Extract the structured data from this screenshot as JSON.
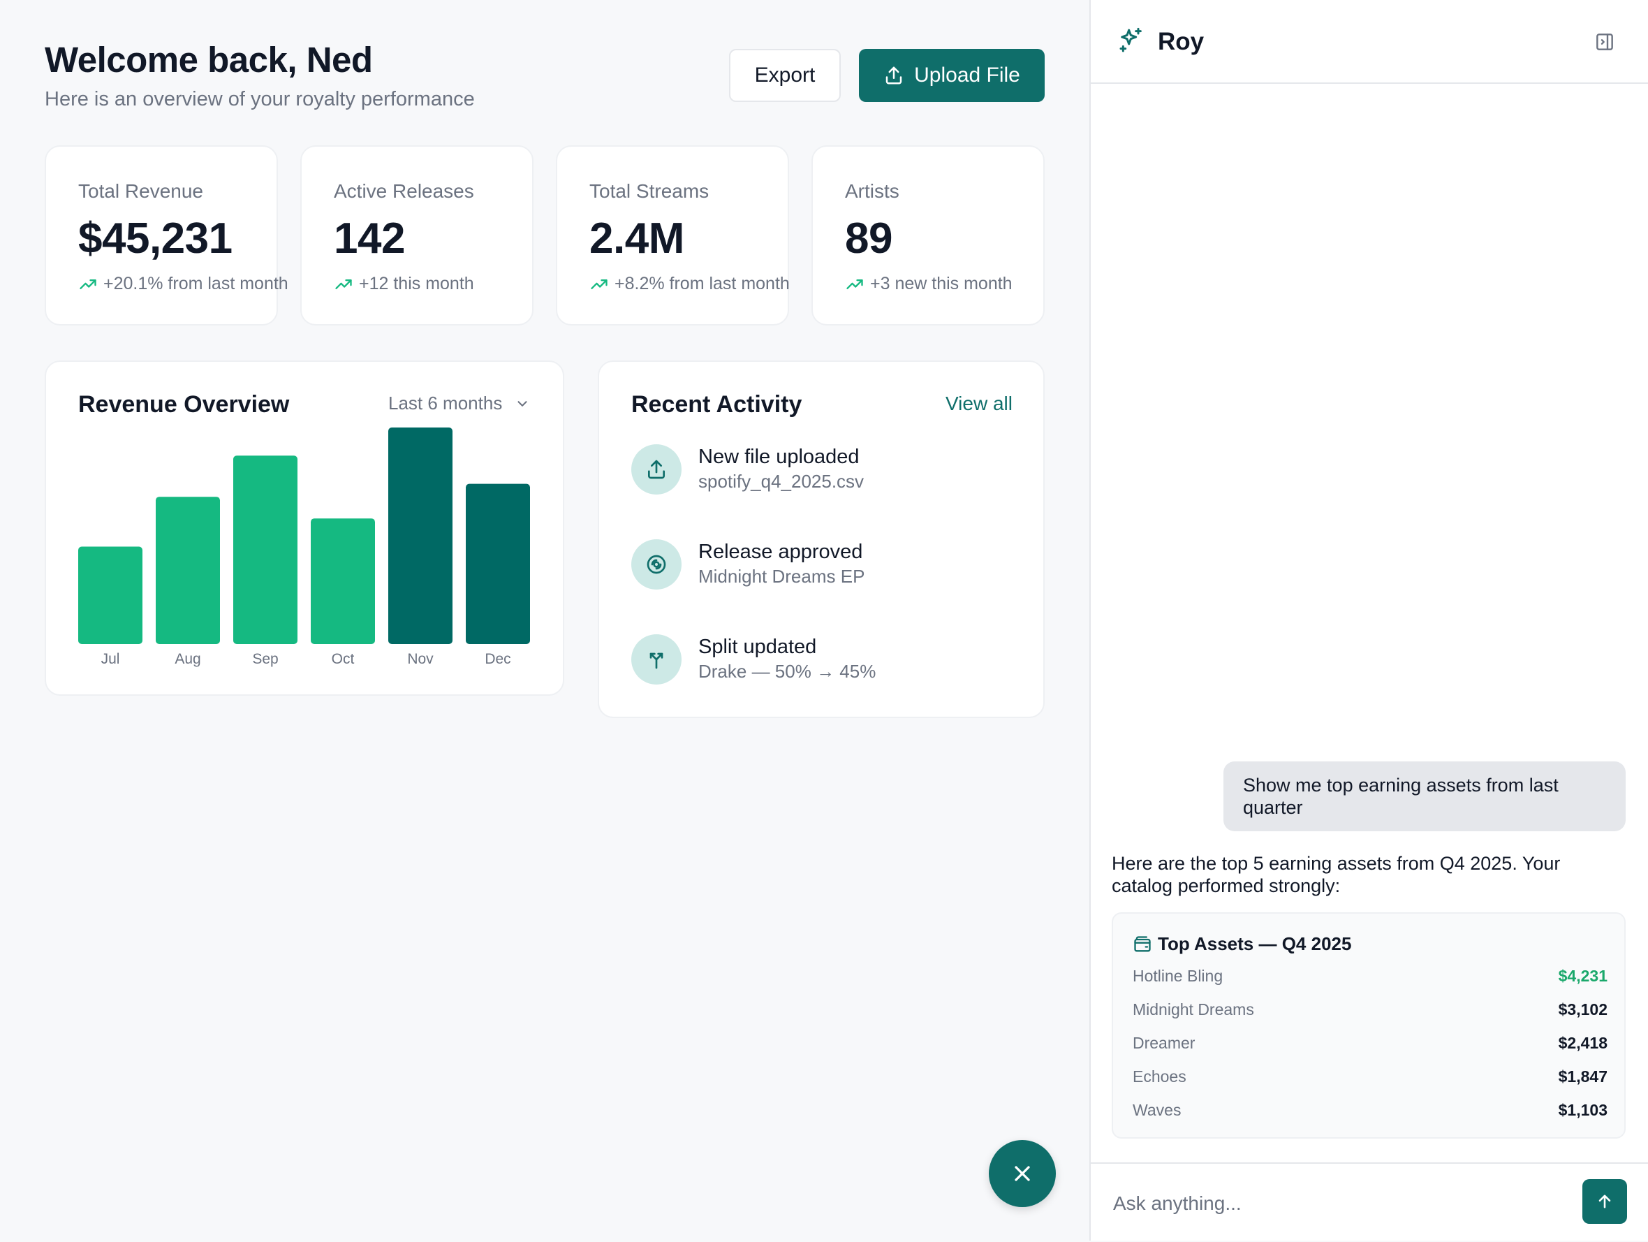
{
  "header": {
    "title": "Welcome back, Ned",
    "subtitle": "Here is an overview of your royalty performance",
    "export_label": "Export",
    "upload_label": "Upload File"
  },
  "stats": [
    {
      "label": "Total Revenue",
      "value": "$45,231",
      "change": "+20.1% from last month"
    },
    {
      "label": "Active Releases",
      "value": "142",
      "change": "+12 this month"
    },
    {
      "label": "Total Streams",
      "value": "2.4M",
      "change": "+8.2% from last month"
    },
    {
      "label": "Artists",
      "value": "89",
      "change": "+3 new this month"
    }
  ],
  "revenue": {
    "title": "Revenue Overview",
    "range": "Last 6 months"
  },
  "chart_data": {
    "type": "bar",
    "categories": [
      "Jul",
      "Aug",
      "Sep",
      "Oct",
      "Nov",
      "Dec"
    ],
    "values": [
      45,
      68,
      87,
      58,
      100,
      74
    ],
    "highlighted": [
      "Nov",
      "Dec"
    ],
    "colors": {
      "base": "#15b981",
      "highlight": "#006964"
    },
    "ylim": [
      0,
      100
    ],
    "grid": false
  },
  "activity": {
    "title": "Recent Activity",
    "view_all": "View all",
    "items": [
      {
        "icon": "upload-icon",
        "name": "New file uploaded",
        "sub": "spotify_q4_2025.csv"
      },
      {
        "icon": "disc-icon",
        "name": "Release approved",
        "sub": "Midnight Dreams EP"
      },
      {
        "icon": "split-icon",
        "name": "Split updated",
        "sub": "Drake — 50% → 45%"
      }
    ]
  },
  "panel": {
    "name": "Roy",
    "user_message": "Show me top earning assets from last quarter",
    "bot_message": "Here are the top 5 earning assets from Q4 2025. Your catalog performed strongly:",
    "assets_title": "Top Assets — Q4 2025",
    "assets": [
      {
        "name": "Hotline Bling",
        "value": "$4,231"
      },
      {
        "name": "Midnight Dreams",
        "value": "$3,102"
      },
      {
        "name": "Dreamer",
        "value": "$2,418"
      },
      {
        "name": "Echoes",
        "value": "$1,847"
      },
      {
        "name": "Waves",
        "value": "$1,103"
      }
    ],
    "input_placeholder": "Ask anything..."
  },
  "colors": {
    "brand": "#0f6e6a",
    "accent_green": "#15b981",
    "positive_text": "#1aa86b"
  }
}
